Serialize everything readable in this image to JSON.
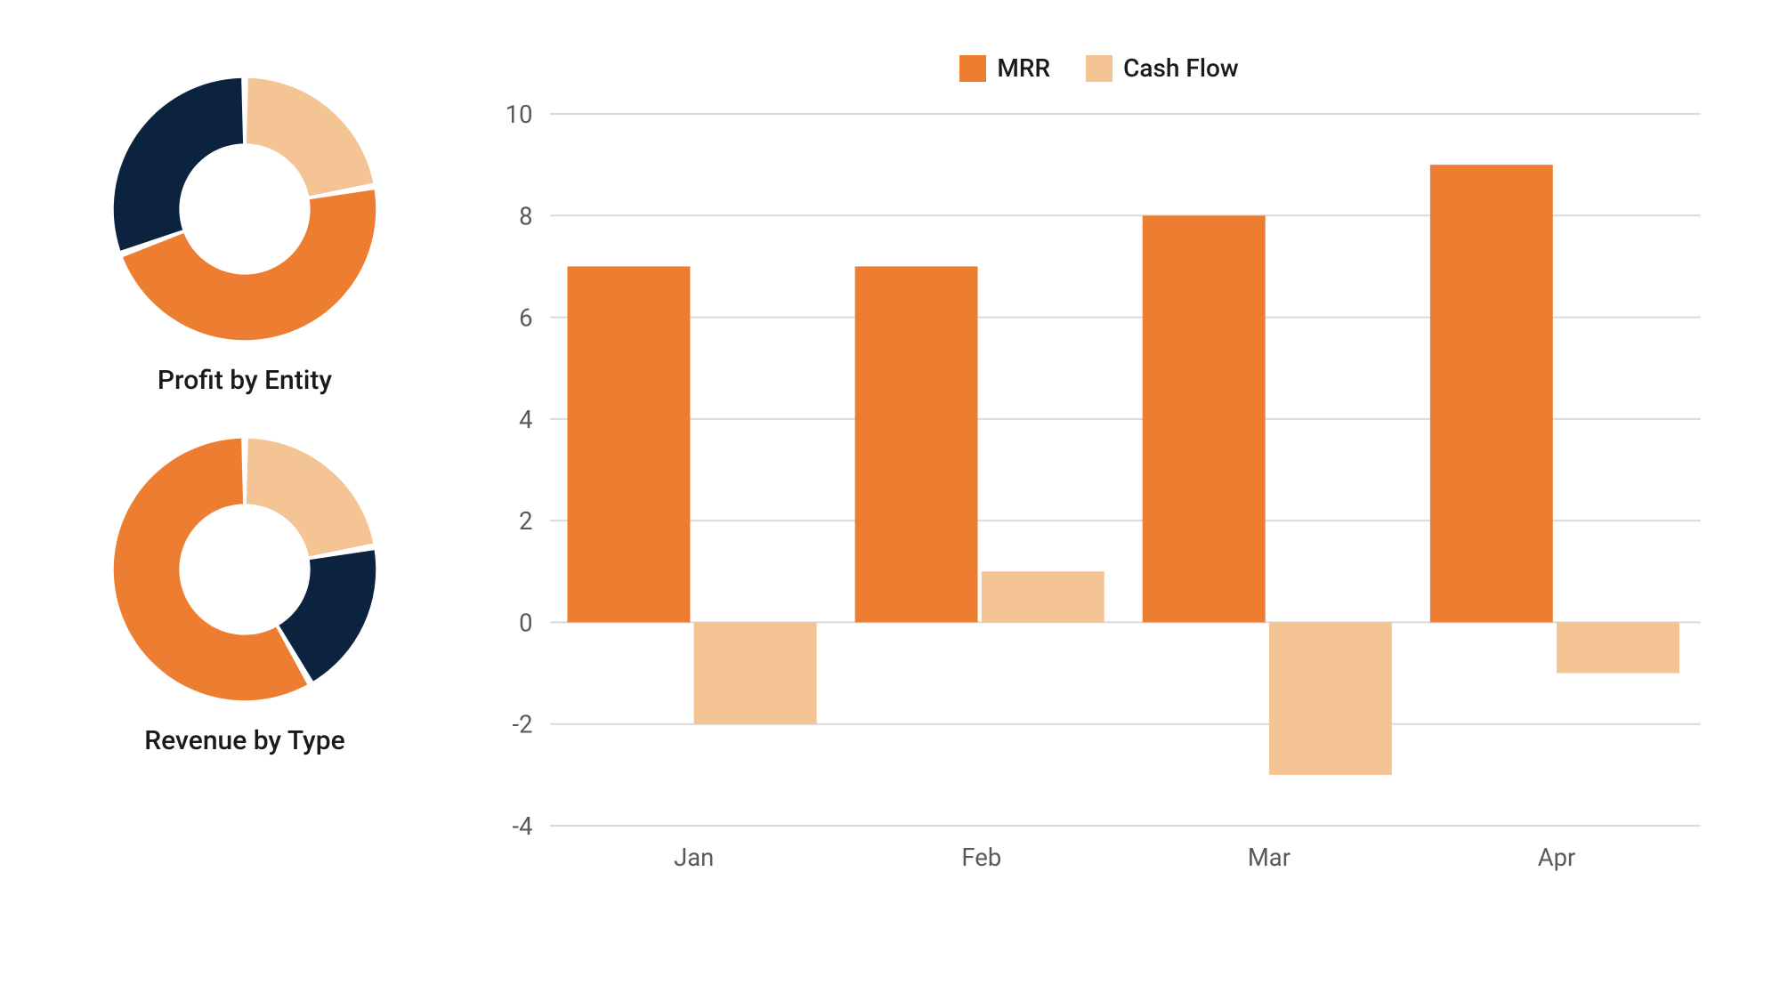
{
  "colors": {
    "orange": "#ed7d31",
    "light_orange": "#f5c494",
    "navy": "#0c2340",
    "grid": "#d9d9d9",
    "axis_text": "#595959",
    "label_text": "#1a1a1a",
    "background": "#ffffff"
  },
  "donuts": [
    {
      "label": "Profit by Entity",
      "inner_ratio": 0.5,
      "start_angle": 0,
      "gap_deg": 3,
      "slices": [
        {
          "value": 80,
          "color": "#f5c494"
        },
        {
          "value": 170,
          "color": "#ed7d31"
        },
        {
          "value": 110,
          "color": "#0c2340"
        }
      ]
    },
    {
      "label": "Revenue by Type",
      "inner_ratio": 0.5,
      "start_angle": 0,
      "gap_deg": 3,
      "slices": [
        {
          "value": 80,
          "color": "#f5c494"
        },
        {
          "value": 70,
          "color": "#0c2340"
        },
        {
          "value": 210,
          "color": "#ed7d31"
        }
      ]
    }
  ],
  "bar_chart": {
    "type": "bar",
    "legend": [
      {
        "label": "MRR",
        "color": "#ed7d31"
      },
      {
        "label": "Cash Flow",
        "color": "#f5c494"
      }
    ],
    "categories": [
      "Jan",
      "Feb",
      "Mar",
      "Apr"
    ],
    "series": [
      {
        "name": "MRR",
        "color": "#ed7d31",
        "values": [
          7,
          7,
          8,
          9
        ]
      },
      {
        "name": "Cash Flow",
        "color": "#f5c494",
        "values": [
          -2,
          1,
          -3,
          -1
        ]
      }
    ],
    "ylim": [
      -4,
      10
    ],
    "ytick_step": 2,
    "grid_color": "#d9d9d9",
    "axis_font_size": 28,
    "bar_group_gap": 0.06,
    "bar_inner_gap": 0.0
  }
}
